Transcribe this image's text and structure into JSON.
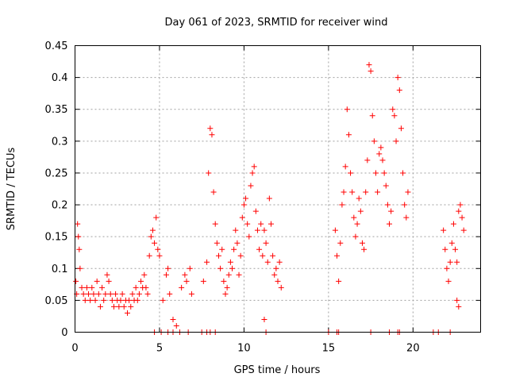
{
  "chart_data": {
    "type": "scatter",
    "title": "Day 061 of 2023, SRMTID for receiver wind",
    "xlabel": "GPS time / hours",
    "ylabel": "SRMTID / TECUs",
    "xlim": [
      0,
      24
    ],
    "ylim": [
      0,
      0.45
    ],
    "x_ticks": [
      0,
      5,
      10,
      15,
      20
    ],
    "x_tick_labels": [
      "0",
      "5",
      "10",
      "15",
      "20"
    ],
    "y_ticks": [
      0,
      0.05,
      0.1,
      0.15,
      0.2,
      0.25,
      0.3,
      0.35,
      0.4,
      0.45
    ],
    "y_tick_labels": [
      "0",
      "0.05",
      "0.1",
      "0.15",
      "0.2",
      "0.25",
      "0.3",
      "0.35",
      "0.4",
      "0.45"
    ],
    "grid": true,
    "marker": "plus",
    "color": "#ff0000",
    "series": [
      {
        "name": "SRMTID",
        "points": [
          [
            0.05,
            0.08
          ],
          [
            0.1,
            0.06
          ],
          [
            0.15,
            0.17
          ],
          [
            0.2,
            0.15
          ],
          [
            0.25,
            0.13
          ],
          [
            0.3,
            0.1
          ],
          [
            0.4,
            0.07
          ],
          [
            0.5,
            0.06
          ],
          [
            0.6,
            0.05
          ],
          [
            0.7,
            0.07
          ],
          [
            0.8,
            0.06
          ],
          [
            0.9,
            0.05
          ],
          [
            1.0,
            0.07
          ],
          [
            1.1,
            0.06
          ],
          [
            1.2,
            0.05
          ],
          [
            1.3,
            0.08
          ],
          [
            1.4,
            0.06
          ],
          [
            1.5,
            0.04
          ],
          [
            1.6,
            0.07
          ],
          [
            1.7,
            0.05
          ],
          [
            1.8,
            0.06
          ],
          [
            1.9,
            0.09
          ],
          [
            2.0,
            0.08
          ],
          [
            2.1,
            0.06
          ],
          [
            2.2,
            0.05
          ],
          [
            2.3,
            0.04
          ],
          [
            2.4,
            0.06
          ],
          [
            2.5,
            0.05
          ],
          [
            2.6,
            0.04
          ],
          [
            2.7,
            0.05
          ],
          [
            2.8,
            0.06
          ],
          [
            2.9,
            0.04
          ],
          [
            3.0,
            0.05
          ],
          [
            3.1,
            0.03
          ],
          [
            3.2,
            0.05
          ],
          [
            3.3,
            0.04
          ],
          [
            3.4,
            0.06
          ],
          [
            3.5,
            0.05
          ],
          [
            3.6,
            0.07
          ],
          [
            3.7,
            0.05
          ],
          [
            3.8,
            0.06
          ],
          [
            3.9,
            0.08
          ],
          [
            4.0,
            0.07
          ],
          [
            4.1,
            0.09
          ],
          [
            4.2,
            0.07
          ],
          [
            4.3,
            0.06
          ],
          [
            4.4,
            0.12
          ],
          [
            4.5,
            0.15
          ],
          [
            4.6,
            0.16
          ],
          [
            4.7,
            0.14
          ],
          [
            4.8,
            0.18
          ],
          [
            4.9,
            0.13
          ],
          [
            5.0,
            0.12
          ],
          [
            5.2,
            0.05
          ],
          [
            5.4,
            0.09
          ],
          [
            5.5,
            0.1
          ],
          [
            5.6,
            0.06
          ],
          [
            5.8,
            0.02
          ],
          [
            6.0,
            0.01
          ],
          [
            6.3,
            0.07
          ],
          [
            6.5,
            0.09
          ],
          [
            6.6,
            0.08
          ],
          [
            6.8,
            0.1
          ],
          [
            6.9,
            0.06
          ],
          [
            7.6,
            0.08
          ],
          [
            7.8,
            0.11
          ],
          [
            7.9,
            0.25
          ],
          [
            8.0,
            0.32
          ],
          [
            8.1,
            0.31
          ],
          [
            8.2,
            0.22
          ],
          [
            8.3,
            0.17
          ],
          [
            8.4,
            0.14
          ],
          [
            8.5,
            0.12
          ],
          [
            8.6,
            0.1
          ],
          [
            8.7,
            0.13
          ],
          [
            8.8,
            0.08
          ],
          [
            8.9,
            0.06
          ],
          [
            9.0,
            0.07
          ],
          [
            9.1,
            0.09
          ],
          [
            9.2,
            0.11
          ],
          [
            9.3,
            0.1
          ],
          [
            9.4,
            0.13
          ],
          [
            9.5,
            0.16
          ],
          [
            9.6,
            0.14
          ],
          [
            9.7,
            0.09
          ],
          [
            9.8,
            0.12
          ],
          [
            9.9,
            0.18
          ],
          [
            10.0,
            0.2
          ],
          [
            10.1,
            0.21
          ],
          [
            10.2,
            0.17
          ],
          [
            10.3,
            0.15
          ],
          [
            10.4,
            0.23
          ],
          [
            10.5,
            0.25
          ],
          [
            10.6,
            0.26
          ],
          [
            10.7,
            0.19
          ],
          [
            10.8,
            0.16
          ],
          [
            10.9,
            0.13
          ],
          [
            11.0,
            0.17
          ],
          [
            11.1,
            0.12
          ],
          [
            11.2,
            0.16
          ],
          [
            11.3,
            0.14
          ],
          [
            11.4,
            0.11
          ],
          [
            11.5,
            0.21
          ],
          [
            11.6,
            0.17
          ],
          [
            11.7,
            0.12
          ],
          [
            11.8,
            0.09
          ],
          [
            11.9,
            0.1
          ],
          [
            12.0,
            0.08
          ],
          [
            12.1,
            0.11
          ],
          [
            12.2,
            0.07
          ],
          [
            11.2,
            0.02
          ],
          [
            15.4,
            0.16
          ],
          [
            15.5,
            0.12
          ],
          [
            15.6,
            0.08
          ],
          [
            15.7,
            0.14
          ],
          [
            15.8,
            0.2
          ],
          [
            15.9,
            0.22
          ],
          [
            16.0,
            0.26
          ],
          [
            16.1,
            0.35
          ],
          [
            16.2,
            0.31
          ],
          [
            16.3,
            0.25
          ],
          [
            16.4,
            0.22
          ],
          [
            16.5,
            0.18
          ],
          [
            16.6,
            0.15
          ],
          [
            16.7,
            0.17
          ],
          [
            16.8,
            0.21
          ],
          [
            16.9,
            0.19
          ],
          [
            17.0,
            0.14
          ],
          [
            17.1,
            0.13
          ],
          [
            17.2,
            0.22
          ],
          [
            17.3,
            0.27
          ],
          [
            17.4,
            0.42
          ],
          [
            17.5,
            0.41
          ],
          [
            17.6,
            0.34
          ],
          [
            17.7,
            0.3
          ],
          [
            17.8,
            0.25
          ],
          [
            17.9,
            0.22
          ],
          [
            18.0,
            0.28
          ],
          [
            18.1,
            0.29
          ],
          [
            18.2,
            0.27
          ],
          [
            18.3,
            0.25
          ],
          [
            18.4,
            0.23
          ],
          [
            18.5,
            0.2
          ],
          [
            18.6,
            0.17
          ],
          [
            18.7,
            0.19
          ],
          [
            18.8,
            0.35
          ],
          [
            18.9,
            0.34
          ],
          [
            19.0,
            0.3
          ],
          [
            19.1,
            0.4
          ],
          [
            19.2,
            0.38
          ],
          [
            19.3,
            0.32
          ],
          [
            19.4,
            0.25
          ],
          [
            19.5,
            0.2
          ],
          [
            19.6,
            0.18
          ],
          [
            19.7,
            0.22
          ],
          [
            21.8,
            0.16
          ],
          [
            21.9,
            0.13
          ],
          [
            22.0,
            0.1
          ],
          [
            22.1,
            0.08
          ],
          [
            22.2,
            0.11
          ],
          [
            22.3,
            0.14
          ],
          [
            22.4,
            0.17
          ],
          [
            22.5,
            0.13
          ],
          [
            22.6,
            0.11
          ],
          [
            22.7,
            0.19
          ],
          [
            22.8,
            0.2
          ],
          [
            22.9,
            0.18
          ],
          [
            23.0,
            0.16
          ],
          [
            22.6,
            0.05
          ],
          [
            22.7,
            0.04
          ]
        ]
      }
    ],
    "zero_points_x": [
      4.7,
      5.1,
      5.5,
      5.8,
      6.2,
      6.7,
      7.5,
      7.8,
      8.0,
      8.3,
      11.3,
      15.0,
      15.5,
      15.6,
      17.5,
      18.6,
      19.1,
      19.2,
      21.2,
      21.5,
      22.2
    ]
  }
}
